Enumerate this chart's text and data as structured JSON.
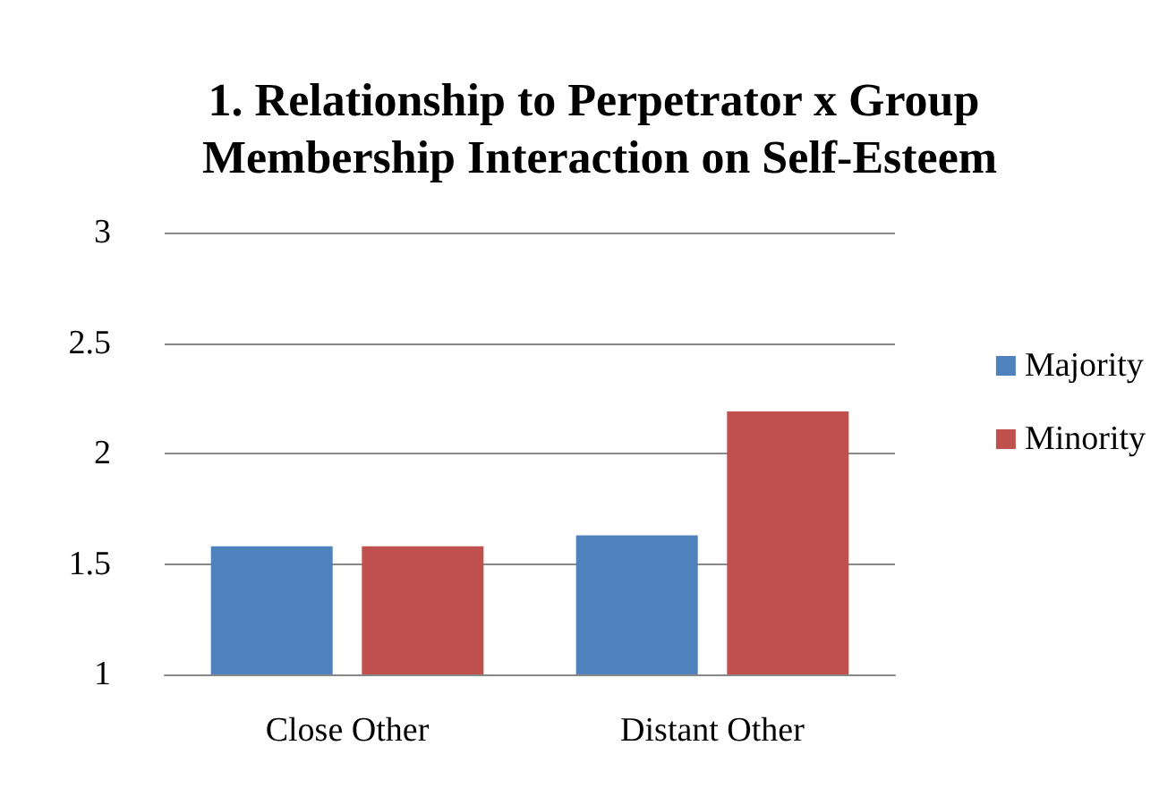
{
  "chart_data": {
    "type": "bar",
    "title": "1. Relationship to Perpetrator x Group Membership Interaction on Self-Esteem",
    "categories": [
      "Close Other",
      "Distant Other"
    ],
    "series": [
      {
        "name": "Majority",
        "color": "#4f81bd",
        "values": [
          1.58,
          1.63
        ]
      },
      {
        "name": "Minority",
        "color": "#c0504d",
        "values": [
          1.58,
          2.19
        ]
      }
    ],
    "ylim": [
      1,
      3
    ],
    "yticks": [
      1,
      1.5,
      2,
      2.5,
      3
    ],
    "grid": "y",
    "legend": "right"
  }
}
